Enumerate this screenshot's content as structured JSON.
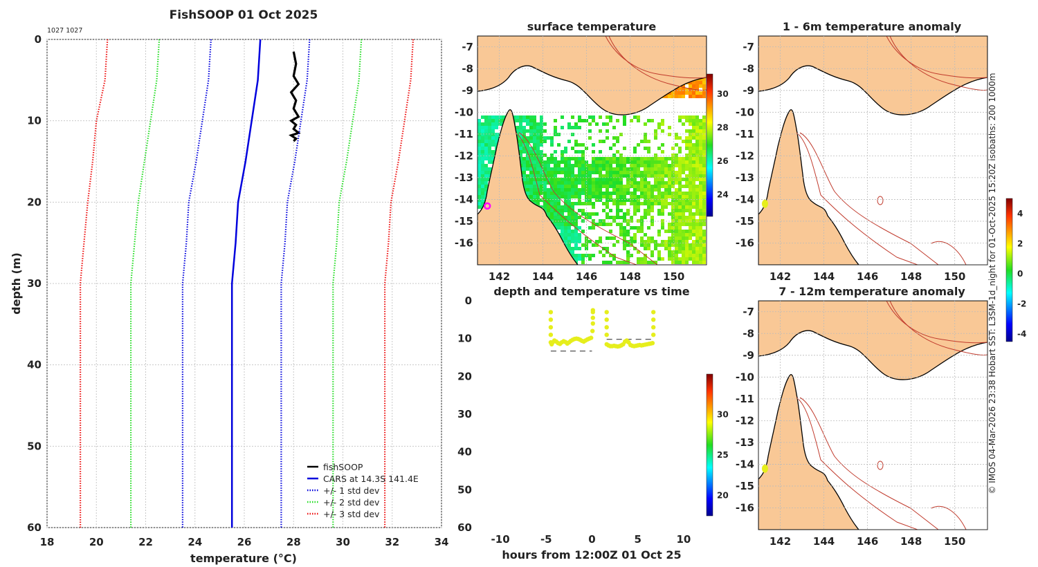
{
  "title": "FishSOOP 01 Oct 2025",
  "cast_ids": "1027 1027",
  "side_note": "© IMOS 04-Mar-2026 23:38 Hobart SST: L3SM-1d_night for 01-Oct-2025 15:20Z isobaths: 200  1000m",
  "colors": {
    "land": "#f9c896",
    "grid": "#c8c8c8",
    "isobath": "#c0392b",
    "coast": "#000000",
    "fishsoop": "#000000",
    "cars": "#0000dd",
    "std1": "#0000dd",
    "std2": "#22dd22",
    "std3": "#ee1111",
    "obs_marker": "#e6ee1c",
    "pin": "#ff00ff"
  },
  "chart_data": [
    {
      "id": "profile",
      "type": "line",
      "title": "",
      "xlabel": "temperature (°C)",
      "ylabel": "depth (m)",
      "xlim": [
        18,
        34
      ],
      "ylim": [
        0,
        60
      ],
      "y_reversed": true,
      "grid": true,
      "legend_position": "bottom-right",
      "x_ticks": [
        "18",
        "20",
        "22",
        "24",
        "26",
        "28",
        "30",
        "32",
        "34"
      ],
      "y_ticks": [
        "0",
        "10",
        "20",
        "30",
        "40",
        "50",
        "60"
      ],
      "series": [
        {
          "name": "fishSOOP",
          "style": "solid-thick",
          "color": "#000000",
          "x": [
            28.0,
            28.1,
            28.0,
            28.2,
            27.9,
            28.1,
            28.0,
            28.2,
            27.9,
            28.1,
            28.0,
            28.2,
            27.9,
            28.1,
            28.0
          ],
          "y": [
            1.5,
            3,
            4.5,
            5.5,
            6.5,
            7.5,
            8.5,
            9.5,
            10,
            10.5,
            11,
            11.5,
            11.8,
            12.2,
            12.5
          ]
        },
        {
          "name": "CARS at 14.3S 141.4E",
          "style": "solid",
          "color": "#0000dd",
          "x": [
            26.65,
            26.55,
            26.3,
            26.05,
            25.75,
            25.65,
            25.5,
            25.5
          ],
          "y": [
            0,
            5,
            10,
            15,
            20,
            25,
            30,
            60
          ]
        },
        {
          "name": "+/- 1 std dev",
          "style": "dotted",
          "color": "#0000dd",
          "x": [
            24.65,
            24.55,
            24.3,
            24.05,
            23.75,
            23.65,
            23.5,
            23.5
          ],
          "x_upper": [
            28.65,
            28.55,
            28.3,
            28.05,
            27.75,
            27.65,
            27.5,
            27.5
          ],
          "y": [
            0,
            5,
            10,
            15,
            20,
            25,
            30,
            60
          ]
        },
        {
          "name": "+/- 2 std dev",
          "style": "dotted",
          "color": "#22dd22",
          "x": [
            22.55,
            22.45,
            22.2,
            21.95,
            21.7,
            21.55,
            21.4,
            21.4
          ],
          "x_upper": [
            30.75,
            30.65,
            30.4,
            30.15,
            29.85,
            29.75,
            29.6,
            29.6
          ],
          "y": [
            0,
            5,
            10,
            15,
            20,
            25,
            30,
            60
          ]
        },
        {
          "name": "+/- 3 std dev",
          "style": "dotted",
          "color": "#ee1111",
          "x": [
            20.45,
            20.35,
            20.0,
            19.85,
            19.65,
            19.5,
            19.35,
            19.35
          ],
          "x_upper": [
            32.85,
            32.75,
            32.5,
            32.25,
            31.95,
            31.85,
            31.7,
            31.7
          ],
          "y": [
            0,
            5,
            10,
            15,
            20,
            25,
            30,
            60
          ]
        }
      ]
    },
    {
      "id": "surface",
      "type": "heatmap",
      "title": "surface temperature",
      "xlim": [
        141,
        151.5
      ],
      "ylim": [
        -17,
        -6.5
      ],
      "x_ticks": [
        "142",
        "144",
        "146",
        "148",
        "150"
      ],
      "y_ticks": [
        "-7",
        "-8",
        "-9",
        "-10",
        "-11",
        "-12",
        "-13",
        "-14",
        "-15",
        "-16"
      ],
      "colorbar": {
        "range": [
          22.7,
          31.2
        ],
        "ticks": [
          "24",
          "26",
          "28",
          "30"
        ]
      },
      "marker": {
        "lon": 141.45,
        "lat": -14.3,
        "value": "pin"
      }
    },
    {
      "id": "anom_shallow",
      "type": "heatmap",
      "title": "1 - 6m temperature anomaly",
      "xlim": [
        141,
        151.5
      ],
      "ylim": [
        -17,
        -6.5
      ],
      "x_ticks": [
        "142",
        "144",
        "146",
        "148",
        "150"
      ],
      "y_ticks": [
        "-7",
        "-8",
        "-9",
        "-10",
        "-11",
        "-12",
        "-13",
        "-14",
        "-15",
        "-16"
      ],
      "marker": {
        "lon": 141.3,
        "lat": -14.2,
        "value": 1.5
      }
    },
    {
      "id": "anom_colorbar",
      "type": "heatmap",
      "colorbar": {
        "range": [
          -4.5,
          5
        ],
        "ticks": [
          "4",
          "2",
          "0",
          "-2",
          "-4"
        ]
      }
    },
    {
      "id": "anom_deep",
      "type": "heatmap",
      "title": "7 - 12m temperature anomaly",
      "xlim": [
        141,
        151.5
      ],
      "ylim": [
        -17,
        -6.5
      ],
      "x_ticks": [
        "142",
        "144",
        "146",
        "148",
        "150"
      ],
      "y_ticks": [
        "-7",
        "-8",
        "-9",
        "-10",
        "-11",
        "-12",
        "-13",
        "-14",
        "-15",
        "-16"
      ],
      "marker": {
        "lon": 141.3,
        "lat": -14.2,
        "value": 1.5
      }
    },
    {
      "id": "time_depth",
      "type": "scatter",
      "title": "depth and temperature vs time",
      "xlabel": "hours from 12:00Z 01 Oct 25",
      "xlim": [
        -12.5,
        12.5
      ],
      "ylim": [
        0,
        60
      ],
      "y_reversed": true,
      "x_ticks": [
        "-10",
        "-5",
        "0",
        "5",
        "10"
      ],
      "y_ticks": [
        "0",
        "10",
        "20",
        "30",
        "40",
        "50",
        "60"
      ],
      "colorbar": {
        "range": [
          17.5,
          35
        ],
        "ticks": [
          "30",
          "25",
          "20"
        ]
      },
      "casts": [
        {
          "x": [
            -4.5,
            -4.5,
            -4.5,
            -4.5,
            -4.5,
            -4.4,
            -4.3,
            -4.1,
            -3.9,
            -3.7,
            -3.5,
            -3.3,
            -3.1,
            -2.9,
            -2.7,
            -2.5,
            -2.3,
            -2.1,
            -1.9,
            -1.7,
            -1.5,
            -1.3,
            -1.1,
            -0.9,
            -0.7,
            -0.5,
            -0.3,
            -0.1,
            0.05,
            0.1,
            0.1,
            0.1,
            0.1
          ],
          "y": [
            3,
            5,
            7,
            9,
            11,
            11.5,
            11,
            10.5,
            10.8,
            11.2,
            11.4,
            11,
            10.7,
            10.9,
            11.3,
            11,
            10.6,
            10.3,
            10.1,
            10.0,
            10.1,
            10.3,
            10.6,
            10.8,
            10.5,
            10.2,
            10.0,
            9.8,
            8,
            6,
            4.5,
            3,
            2.5
          ],
          "temp": 28.2
        },
        {
          "x": [
            1.6,
            1.6,
            1.6,
            1.6,
            1.6,
            1.8,
            2.0,
            2.2,
            2.4,
            2.6,
            2.8,
            3.0,
            3.2,
            3.4,
            3.6,
            3.8,
            4.0,
            4.2,
            4.4,
            4.6,
            4.8,
            5.0,
            5.2,
            5.4,
            5.6,
            5.8,
            6.0,
            6.2,
            6.4,
            6.6,
            6.7,
            6.7,
            6.7,
            6.7
          ],
          "y": [
            3,
            5,
            7,
            9,
            11.5,
            11.8,
            12,
            12,
            11.9,
            12,
            12.1,
            12,
            11.8,
            11.5,
            10.8,
            10.5,
            11,
            11.7,
            11.9,
            12,
            11.9,
            11.8,
            11.7,
            11.8,
            11.7,
            11.6,
            11.5,
            11.4,
            11.3,
            11.2,
            9,
            7,
            5,
            3
          ],
          "temp": 28.2
        }
      ],
      "bottom_markers": [
        {
          "x_start": -4.5,
          "x_end": 0.0,
          "depth": 13.3
        },
        {
          "x_start": 1.6,
          "x_end": 6.7,
          "depth": 10.2
        }
      ]
    }
  ]
}
